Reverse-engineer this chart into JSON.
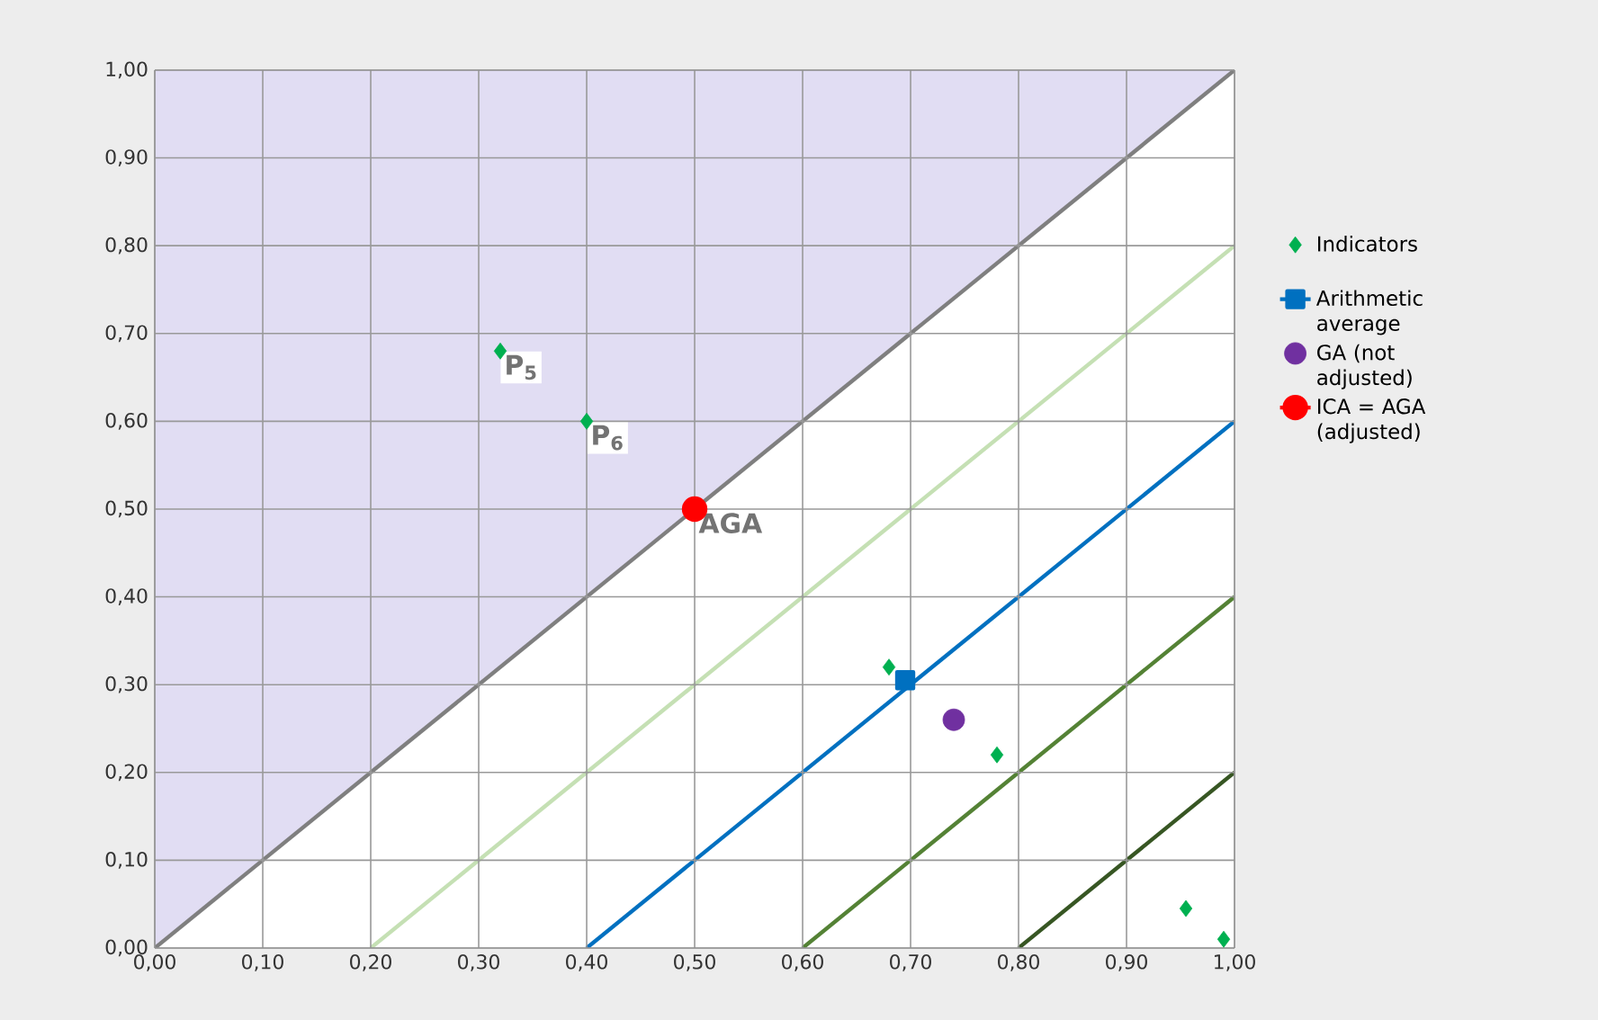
{
  "chart_data": {
    "type": "scatter",
    "xlim": [
      0,
      1
    ],
    "ylim": [
      0,
      1
    ],
    "xticks": [
      {
        "value": 0,
        "label": "0,00"
      },
      {
        "value": 0.1,
        "label": "0,10"
      },
      {
        "value": 0.2,
        "label": "0,20"
      },
      {
        "value": 0.3,
        "label": "0,30"
      },
      {
        "value": 0.4,
        "label": "0,40"
      },
      {
        "value": 0.5,
        "label": "0,50"
      },
      {
        "value": 0.6,
        "label": "0,60"
      },
      {
        "value": 0.7,
        "label": "0,70"
      },
      {
        "value": 0.8,
        "label": "0,80"
      },
      {
        "value": 0.9,
        "label": "0,90"
      },
      {
        "value": 1,
        "label": "1,00"
      }
    ],
    "yticks": [
      {
        "value": 0,
        "label": "0,00"
      },
      {
        "value": 0.1,
        "label": "0,10"
      },
      {
        "value": 0.2,
        "label": "0,20"
      },
      {
        "value": 0.3,
        "label": "0,30"
      },
      {
        "value": 0.4,
        "label": "0,40"
      },
      {
        "value": 0.5,
        "label": "0,50"
      },
      {
        "value": 0.6,
        "label": "0,60"
      },
      {
        "value": 0.7,
        "label": "0,70"
      },
      {
        "value": 0.8,
        "label": "0,80"
      },
      {
        "value": 0.9,
        "label": "0,90"
      },
      {
        "value": 1,
        "label": "1,00"
      }
    ],
    "grid": true,
    "legend": "right",
    "series": [
      {
        "type": "line",
        "color": "#7f7f7f",
        "x": [
          0,
          1
        ],
        "values": [
          0,
          1
        ],
        "marker": "none"
      },
      {
        "type": "line",
        "color": "#c5e0b4",
        "x": [
          0.2,
          1
        ],
        "values": [
          0,
          0.8
        ],
        "marker": "none"
      },
      {
        "type": "line",
        "color": "#0070c0",
        "x": [
          0.4,
          1
        ],
        "values": [
          0,
          0.6
        ],
        "marker": "none"
      },
      {
        "type": "line",
        "color": "#548235",
        "x": [
          0.6,
          1
        ],
        "values": [
          0,
          0.4
        ],
        "marker": "none"
      },
      {
        "type": "line",
        "color": "#375623",
        "x": [
          0.8,
          1
        ],
        "values": [
          0,
          0.2
        ],
        "marker": "none"
      },
      {
        "name": "Indicators",
        "color": "#00b050",
        "marker": "diamond",
        "x": [
          0.32,
          0.4,
          0.68,
          0.78,
          0.955,
          0.99
        ],
        "values": [
          0.68,
          0.6,
          0.32,
          0.22,
          0.045,
          0.01
        ]
      },
      {
        "type": "line",
        "name": "Arithmetic average",
        "color": "#0070c0",
        "marker": "square",
        "x": [
          0.695
        ],
        "values": [
          0.305
        ]
      },
      {
        "name": "GA (not adjusted)",
        "color": "#7030a0",
        "marker": "circle",
        "x": [
          0.74
        ],
        "values": [
          0.26
        ]
      },
      {
        "type": "line",
        "name": "ICA = AGA (adjusted)",
        "color": "#ff0000",
        "marker": "circle",
        "x": [
          0.5
        ],
        "values": [
          0.5
        ]
      }
    ],
    "annotations": [
      {
        "text": "P$_{5}$",
        "x": 0.32,
        "y": 0.68
      },
      {
        "text": "P$_{6}$",
        "x": 0.4,
        "y": 0.6
      },
      {
        "text": "AGA",
        "x": 0.5,
        "y": 0.5
      }
    ]
  }
}
